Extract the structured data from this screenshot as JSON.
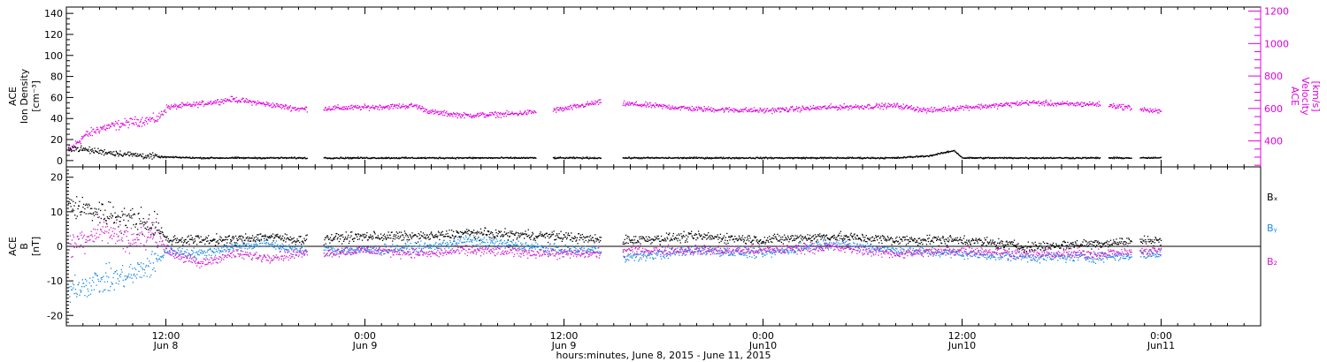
{
  "colors": {
    "density": "#000000",
    "velocity": "#e000e0",
    "bx": "#000000",
    "by": "#1e8ce6",
    "bz": "#d020d0",
    "axis": "#000000"
  },
  "xaxis": {
    "title": "hours:minutes,  June  8, 2015 - June 11, 2015",
    "range_hours": [
      6,
      78
    ],
    "ticks": [
      {
        "hour": 12,
        "time": "12:00",
        "date": "Jun 8"
      },
      {
        "hour": 24,
        "time": "0:00",
        "date": "Jun 9"
      },
      {
        "hour": 36,
        "time": "12:00",
        "date": "Jun 9"
      },
      {
        "hour": 48,
        "time": "0:00",
        "date": "Jun10"
      },
      {
        "hour": 60,
        "time": "12:00",
        "date": "Jun10"
      },
      {
        "hour": 72,
        "time": "0:00",
        "date": "Jun11"
      }
    ]
  },
  "panel_top": {
    "left_label": [
      "ACE",
      "Ion Density",
      "[cm⁻³]"
    ],
    "right_label": [
      "ACE",
      "Velocity",
      "[km/s]"
    ],
    "left_ticks": [
      0,
      20,
      40,
      60,
      80,
      100,
      120,
      140
    ],
    "left_range": [
      -6,
      146
    ],
    "right_ticks": [
      400,
      600,
      800,
      1000,
      1200
    ],
    "right_range": [
      240,
      1225
    ]
  },
  "panel_bottom": {
    "left_label": [
      "ACE",
      "B",
      "[nT]"
    ],
    "ticks": [
      -20,
      -10,
      0,
      10,
      20
    ],
    "range": [
      -23,
      23
    ],
    "legend": [
      "Bₓ",
      "Bᵧ",
      "B₂"
    ]
  },
  "chart_data": [
    {
      "type": "scatter",
      "panel": "top",
      "x_unit": "hours since 2015-06-08 00:00 UT",
      "series": [
        {
          "name": "Ion Density",
          "axis": "left",
          "unit": "cm^-3",
          "x": [
            6.5,
            8,
            10,
            11.5,
            14,
            18,
            24,
            30,
            36,
            42,
            48,
            54,
            56,
            58,
            59.5,
            60,
            66,
            72
          ],
          "y": [
            12,
            9,
            6,
            4,
            3,
            3,
            3,
            3,
            3,
            3,
            3,
            3,
            3,
            5,
            10,
            3,
            3,
            3
          ]
        },
        {
          "name": "Velocity",
          "axis": "right",
          "unit": "km/s",
          "x": [
            6.2,
            7,
            8,
            9,
            10,
            11.5,
            12,
            14,
            16,
            18,
            20,
            24,
            27,
            28,
            30,
            33,
            36,
            38,
            40,
            44,
            48,
            52,
            56,
            58,
            60,
            62,
            64,
            66,
            68,
            70,
            72
          ],
          "y": [
            350,
            430,
            480,
            500,
            520,
            540,
            610,
            630,
            660,
            630,
            600,
            610,
            620,
            580,
            560,
            570,
            600,
            640,
            630,
            600,
            590,
            610,
            620,
            590,
            610,
            620,
            640,
            630,
            630,
            610,
            580
          ]
        }
      ],
      "gaps_hours": [
        [
          20.5,
          21.5
        ],
        [
          34.3,
          35.3
        ],
        [
          38.2,
          39.5
        ],
        [
          68.3,
          68.8
        ],
        [
          70.2,
          70.7
        ]
      ]
    },
    {
      "type": "scatter",
      "panel": "bottom",
      "x_unit": "hours since 2015-06-08 00:00 UT",
      "series": [
        {
          "name": "Bx",
          "unit": "nT",
          "x": [
            6,
            8,
            10,
            11.5,
            12,
            14,
            16,
            18,
            20,
            24,
            28,
            30,
            36,
            38,
            40,
            44,
            48,
            52,
            56,
            60,
            64,
            68,
            72
          ],
          "y": [
            12,
            10,
            8,
            6,
            2,
            2,
            2,
            3,
            2,
            3,
            3,
            4,
            3,
            2,
            2,
            3,
            2,
            3,
            2,
            2,
            0,
            1,
            2
          ]
        },
        {
          "name": "By",
          "unit": "nT",
          "x": [
            6,
            8,
            10,
            11.5,
            12,
            14,
            16,
            18,
            20,
            24,
            28,
            30,
            36,
            38,
            40,
            44,
            48,
            52,
            56,
            60,
            64,
            68,
            72
          ],
          "y": [
            -12,
            -10,
            -8,
            -4,
            -1,
            -2,
            0,
            1,
            -1,
            -1,
            0,
            2,
            -1,
            -1,
            -3,
            -1,
            -2,
            1,
            -1,
            -2,
            -3,
            -3,
            -2
          ]
        },
        {
          "name": "Bz",
          "unit": "nT",
          "x": [
            6,
            8,
            10,
            11.5,
            12,
            14,
            16,
            18,
            20,
            24,
            28,
            30,
            36,
            38,
            40,
            44,
            48,
            52,
            56,
            60,
            64,
            68,
            72
          ],
          "y": [
            0,
            5,
            2,
            4,
            -1,
            -5,
            -2,
            -3,
            -2,
            -1,
            -2,
            -1,
            -2,
            -2,
            -1,
            -1,
            -1,
            0,
            -2,
            -1,
            -2,
            -2,
            -1
          ]
        }
      ],
      "gaps_hours": [
        [
          20.5,
          21.5
        ],
        [
          38.2,
          39.5
        ],
        [
          70.2,
          70.7
        ]
      ]
    }
  ]
}
